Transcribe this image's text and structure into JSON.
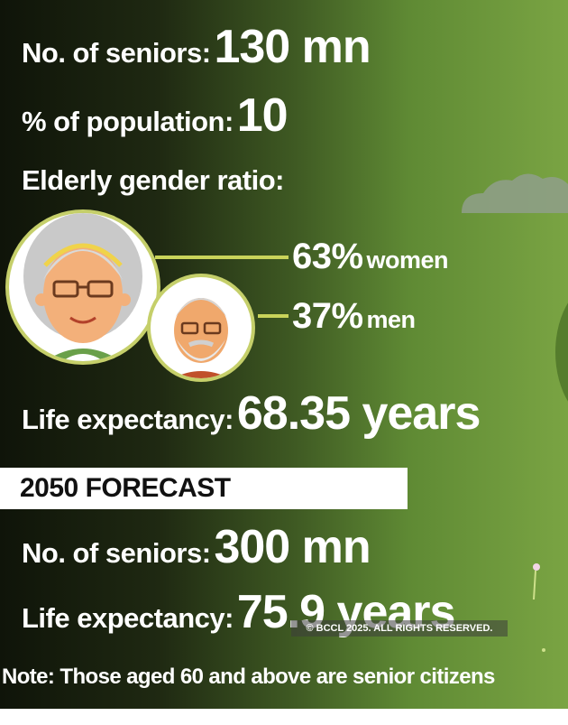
{
  "stats": {
    "seniors_label": "No. of seniors:",
    "seniors_value": "130 mn",
    "population_label": "% of population:",
    "population_value": "10",
    "gender_heading": "Elderly gender ratio:",
    "women_pct": "63%",
    "women_label": "women",
    "men_pct": "37%",
    "men_label": "men",
    "life_label": "Life expectancy:",
    "life_value": "68.35 years"
  },
  "forecast": {
    "title": "2050 FORECAST",
    "seniors_label": "No. of seniors:",
    "seniors_value": "300 mn",
    "life_label": "Life expectancy:",
    "life_value": "75.9 years"
  },
  "note": "Note: Those aged 60 and above are senior citizens",
  "copyright": "© BCCL 2025. ALL RIGHTS RESERVED.",
  "icons": [
    "cloud-icon",
    "elderly-woman-icon",
    "elderly-man-icon",
    "flower-icon"
  ],
  "colors": {
    "connector": "#c9d35a",
    "circle_ring": "#c5cf6a",
    "background_dark": "#0f1409",
    "background_light": "#7aa443"
  }
}
